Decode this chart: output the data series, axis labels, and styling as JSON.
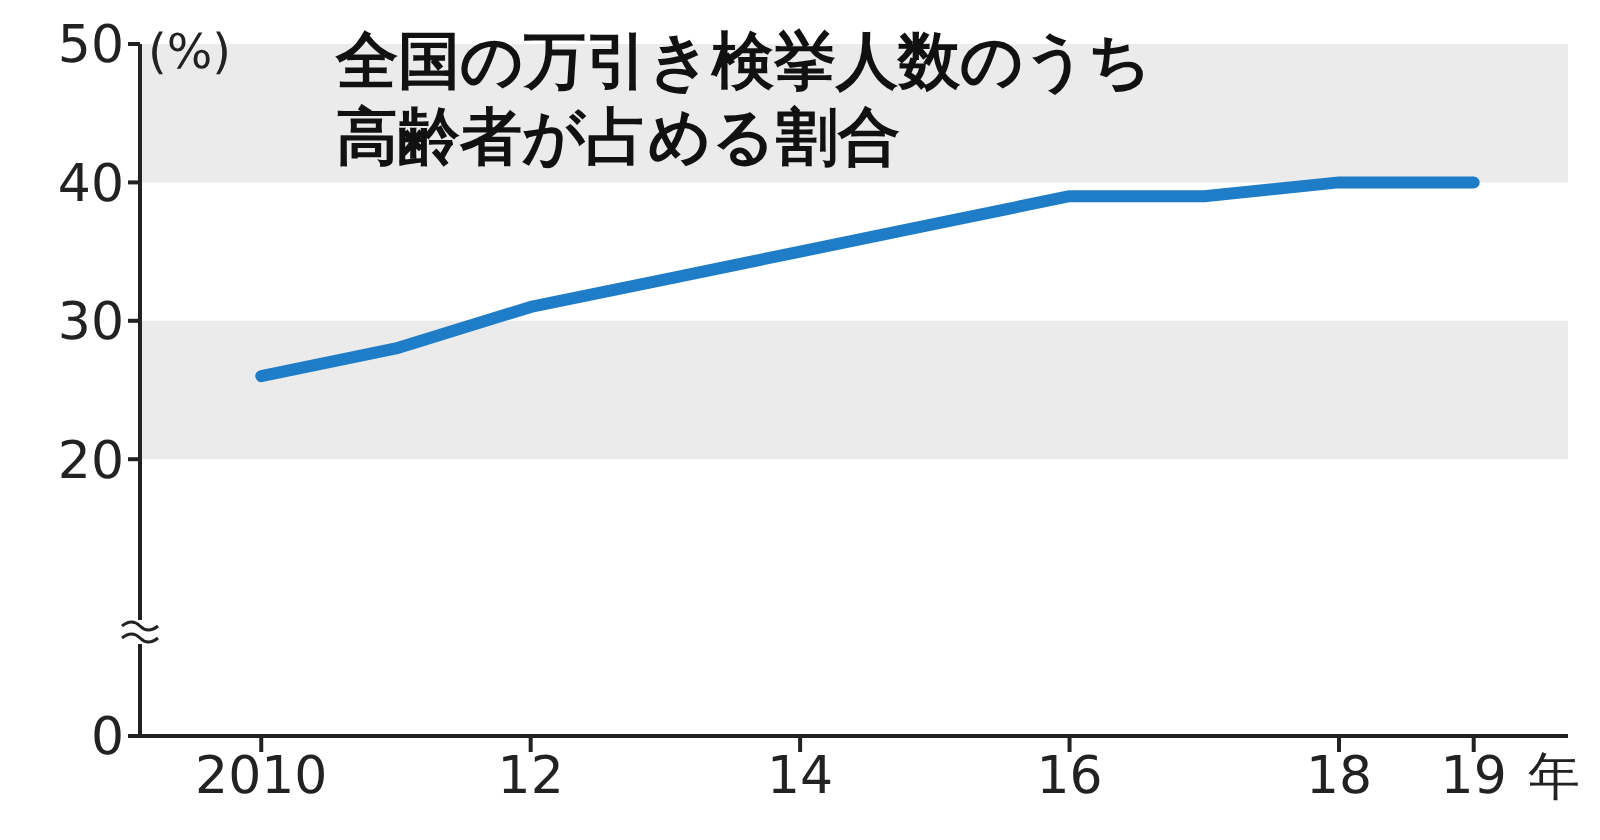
{
  "chart_data": {
    "type": "line",
    "title": "全国の万引き検挙人数のうち高齢者が占める割合",
    "ylabel": "(%)",
    "xlabel": "年",
    "x": [
      2010,
      2011,
      2012,
      2013,
      2014,
      2015,
      2016,
      2017,
      2018,
      2019
    ],
    "series": [
      {
        "color": "#1f7cc7",
        "values": [
          26,
          28,
          31,
          33,
          35,
          37,
          39,
          39,
          40,
          40
        ]
      }
    ],
    "xlim": [
      2009.1,
      2019.7
    ],
    "xticks": [
      2010,
      {
        "value": 2012,
        "label": "12"
      },
      {
        "value": 2014,
        "label": "14"
      },
      {
        "value": 2016,
        "label": "16"
      },
      {
        "value": 2018,
        "label": "18"
      },
      {
        "value": 2019,
        "label": "19"
      }
    ],
    "ylim": [
      0,
      50
    ],
    "yticks": [
      0,
      20,
      30,
      40,
      50
    ],
    "bands": [
      {
        "axis": "y",
        "from": 20,
        "to": 30,
        "color": "#ebebeb"
      },
      {
        "axis": "y",
        "from": 40,
        "to": 50,
        "color": "#ebebeb"
      }
    ],
    "grid": false,
    "legend": false,
    "marker": "none",
    "line_style": "solid"
  }
}
